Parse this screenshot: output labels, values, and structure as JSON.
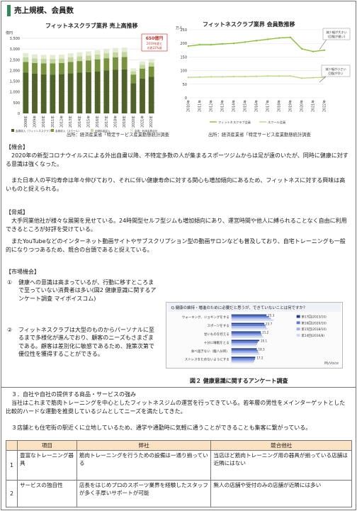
{
  "section1": {
    "title": "売上規模、会員数"
  },
  "chart_data": [
    {
      "type": "bar",
      "title": "フィットネスクラブ業界 売上高推移",
      "ylabel": "億円",
      "ylim": [
        0,
        3500
      ],
      "yticks": [
        "0",
        "500",
        "1,000",
        "1,500",
        "2,000",
        "2,500",
        "3,000",
        "3,500"
      ],
      "categories": [
        "2008年",
        "2009年",
        "2010年",
        "2011年",
        "2012年",
        "2013年",
        "2014年",
        "2015年",
        "2016年",
        "2017年",
        "2018年",
        "2019年",
        "2020年",
        "2021年",
        "2022年"
      ],
      "series": [
        {
          "name": "会員収入（フィットネスクラブ）",
          "values": [
            1900,
            1850,
            1820,
            1810,
            1830,
            1870,
            1900,
            1920,
            1960,
            2000,
            2030,
            2050,
            1410,
            1620,
            1700
          ]
        },
        {
          "name": "会員収入（スクール）",
          "values": [
            500,
            500,
            510,
            520,
            520,
            530,
            540,
            550,
            560,
            570,
            580,
            580,
            400,
            460,
            480
          ]
        },
        {
          "name": "利用料金収入",
          "values": [
            210,
            210,
            210,
            205,
            205,
            210,
            215,
            220,
            225,
            230,
            235,
            235,
            150,
            180,
            190
          ]
        },
        {
          "name": "会員・利用会員合計",
          "values": [
            200,
            190,
            190,
            185,
            185,
            190,
            195,
            200,
            200,
            205,
            205,
            205,
            140,
            165,
            170
          ]
        }
      ],
      "annotation": {
        "value": "650億円",
        "note1": "2019年度と",
        "note2": "の差22%減"
      },
      "source": "出所：経済産業省「特定サービス産業動態統計調査"
    },
    {
      "type": "line",
      "title": "フィットネスクラブ業界 会員数推移",
      "ylabel": "万人",
      "ylim": [
        0,
        250
      ],
      "yticks": [
        "0",
        "50",
        "100",
        "150",
        "200",
        "250"
      ],
      "categories": [
        "2010年",
        "2011年",
        "2012年",
        "2013年",
        "2014年",
        "2015年",
        "2016年",
        "2017年",
        "2018年",
        "2019年",
        "2020年",
        "2021年",
        "2022年"
      ],
      "series": [
        {
          "name": "フィットネスクラブ会員",
          "values": [
            190,
            195,
            195,
            198,
            200,
            205,
            210,
            215,
            220,
            222,
            180,
            170,
            175
          ]
        },
        {
          "name": "スクール会員",
          "values": [
            75,
            76,
            77,
            77,
            78,
            78,
            79,
            80,
            80,
            80,
            72,
            74,
            75
          ]
        }
      ],
      "annotations": [
        "減少幅が大きい",
        "(回復が遅い)",
        "減少幅が小さい",
        "回復が早い"
      ],
      "source": "出所：経済産業省「特定サービス産業動態統計調査"
    }
  ],
  "opportunity": {
    "heading": "【機会】",
    "p1": "　2020年の新型コロナウイルスによる外出自粛以降、不特定多数の人が集まるスポーツジムからは足が遠のいたが、同時に健康に対する意識は強くなった。",
    "p2": "　また日本人の平均寿命は年々伸びており、それに伴い健康寿命に対する関心も増加傾向にあるため、フィットネスに対する興味は高いものと捉えられる。"
  },
  "threat": {
    "heading": "【脅威】",
    "p1": "　大手同業他社が様々な展開を見せている。24時間型セルフ型ジムも増加傾向にあり、運営時間や他人に縛られることなく自由に利用できるところが好評を受けている。",
    "p2": "　またYouTubeなどのインターネット動画サイトやサブスクリプション型の動画サロンなども普及しており、自宅トレーニングも一般的になりつつあるため、競合の台頭であると捉えている。"
  },
  "market": {
    "heading": "【市場機会】",
    "item1_num": "①",
    "item1": "健康への意識は高まっているが、行動に移すところまで至っていない消費者は多い(図2 健康意識に関するアンケート調査 マイボイスコム)",
    "item2_num": "②",
    "item2": "フィットネスクラブは大型のものからパーソナルに至るまで多様化が進んでおり、顧客のニーズもさまざまである。顧客は差別化に敏感であるため、施策次第で優位性を獲得することができる。"
  },
  "survey": {
    "title": "Q.健康の維持・増進のために必要だと思うが、できていないことは何ですか？",
    "categories": [
      "ウォーキング、ジョギングをする",
      "スポーツをする",
      "甘いものを控える",
      "十分に睡眠をとる",
      "食べ過ぎない（腹八分目）",
      "ストレスをためないようにする"
    ],
    "series": [
      {
        "name": "第17回(2023/10)",
        "values": [
          25.3,
          23.7,
          21.2,
          20.1,
          18.3,
          17.2
        ]
      },
      {
        "name": "第16回(2020/10)",
        "values": [
          27.0,
          24.5,
          21.5,
          19.0,
          19.0,
          17.0
        ]
      },
      {
        "name": "第15回(2018/10)",
        "values": [
          28.5,
          25.0,
          22.0,
          18.5,
          19.5,
          16.5
        ]
      },
      {
        "name": "第14回(2016/8)",
        "values": [
          30.5,
          26.0,
          23.0,
          18.0,
          20.5,
          16.0
        ]
      }
    ],
    "data_labels": [
      "25.3",
      "23.7",
      "21.2",
      "20.1",
      "18.3",
      "17.2"
    ],
    "brand": "MyVoice"
  },
  "fig2_caption": "図２ 健康意識に関するアンケート調査",
  "strength": {
    "title": "３．自社や自社の提供する商品・サービスの強み",
    "p1": "　当社はこれまで筋肉トレーニングを中心としたフィットネスジムの運営を行ってきている。若年層の男性をメインターゲットとした比較的ハードな運動を推奨しているジムとしてニーズを満たしてきた。",
    "p2": "　３店舗とも住宅街の駅近くに立地しているため、通学や通勤時に気軽に通うことができることも集客に繋がっている。",
    "table": {
      "headers": [
        "",
        "項目",
        "弊社",
        "競合他社"
      ],
      "rows": [
        {
          "no": "1",
          "item": "豊富なトレーニング器具",
          "ours": "筋肉トレーニングを行うための設備は一通り揃っている",
          "others": "当店ほど筋肉トレーニング用の器具が揃っている店舗は近隣にはない"
        },
        {
          "no": "2",
          "item": "サービスの独自性",
          "ours": "店長をはじめプロのスポーツ業界を経験したスタッフが多く手厚いサポートが可能",
          "others": "無人の店舗や受付のみの店舗が近隣には多い"
        }
      ]
    }
  },
  "colors": {
    "accent": "#2e8b57",
    "bar_dark": "#4f6228",
    "bar_mid": "#77933c",
    "bar_light": "#c3d69b",
    "line_green": "#8bbf3a"
  }
}
